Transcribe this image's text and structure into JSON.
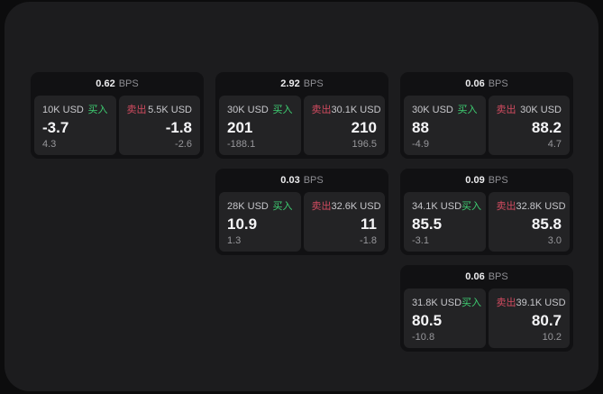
{
  "labels": {
    "bps": "BPS",
    "buy": "买入",
    "sell": "卖出"
  },
  "colors": {
    "background": "#0c0c0d",
    "panel": "#1c1c1e",
    "card": "#111113",
    "tile": "#232325",
    "buy_green": "#3ecf72",
    "sell_red": "#d24b60",
    "text_primary": "#f5f5f7",
    "text_secondary": "#c7c7cb",
    "text_muted": "#97979b"
  },
  "cards": [
    {
      "bps": "0.62",
      "buy": {
        "amount": "10K USD",
        "price": "-3.7",
        "delta": "4.3"
      },
      "sell": {
        "amount": "5.5K USD",
        "price": "-1.8",
        "delta": "-2.6"
      }
    },
    {
      "bps": "2.92",
      "buy": {
        "amount": "30K USD",
        "price": "201",
        "delta": "-188.1"
      },
      "sell": {
        "amount": "30.1K USD",
        "price": "210",
        "delta": "196.5"
      }
    },
    {
      "bps": "0.06",
      "buy": {
        "amount": "30K USD",
        "price": "88",
        "delta": "-4.9"
      },
      "sell": {
        "amount": "30K USD",
        "price": "88.2",
        "delta": "4.7"
      }
    },
    {
      "bps": "0.03",
      "buy": {
        "amount": "28K USD",
        "price": "10.9",
        "delta": "1.3"
      },
      "sell": {
        "amount": "32.6K USD",
        "price": "11",
        "delta": "-1.8"
      }
    },
    {
      "bps": "0.09",
      "buy": {
        "amount": "34.1K USD",
        "price": "85.5",
        "delta": "-3.1"
      },
      "sell": {
        "amount": "32.8K USD",
        "price": "85.8",
        "delta": "3.0"
      }
    },
    {
      "bps": "0.06",
      "buy": {
        "amount": "31.8K USD",
        "price": "80.5",
        "delta": "-10.8"
      },
      "sell": {
        "amount": "39.1K USD",
        "price": "80.7",
        "delta": "10.2"
      }
    }
  ]
}
